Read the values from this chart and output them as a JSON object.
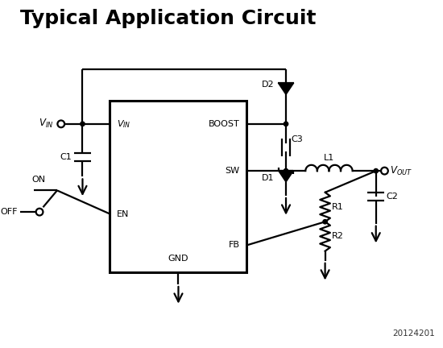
{
  "title": "Typical Application Circuit",
  "title_fontsize": 18,
  "title_fontweight": "bold",
  "background_color": "#ffffff",
  "line_color": "#000000",
  "line_width": 1.6,
  "figsize": [
    5.5,
    4.32
  ],
  "dpi": 100,
  "watermark": "20124201",
  "xlim": [
    0,
    11
  ],
  "ylim": [
    0,
    8.64
  ]
}
